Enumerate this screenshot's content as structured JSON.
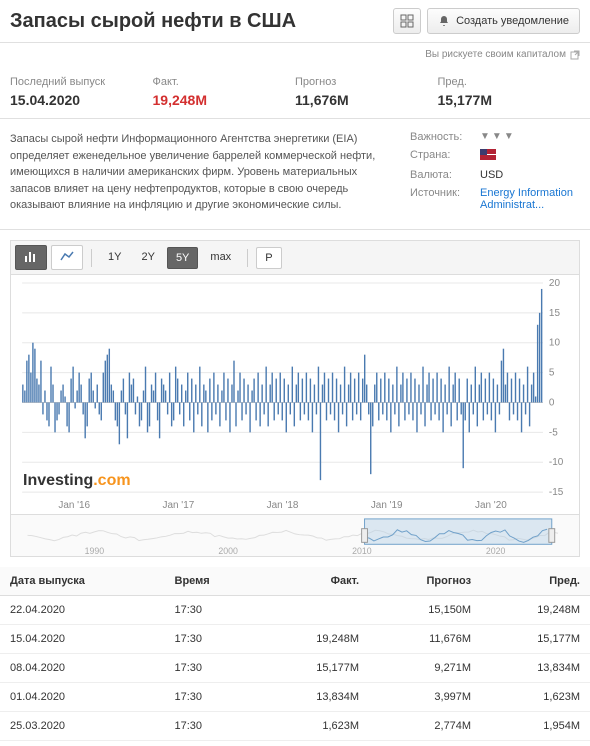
{
  "header": {
    "title": "Запасы сырой нефти в США",
    "create_alert": "Создать уведомление",
    "risk_text": "Вы рискуете своим капиталом"
  },
  "stats": {
    "release_label": "Последний выпуск",
    "release_value": "15.04.2020",
    "actual_label": "Факт.",
    "actual_value": "19,248M",
    "forecast_label": "Прогноз",
    "forecast_value": "11,676M",
    "prev_label": "Пред.",
    "prev_value": "15,177M"
  },
  "description": "Запасы сырой нефти Информационного Агентства энергетики (EIA) определяет еженедельное увеличение баррелей коммерческой нефти, имеющихся в наличии американских фирм. Уровень материальных запасов влияет на цену нефтепродуктов, которые в свою очередь оказывают влияние на инфляцию и другие экономические силы.",
  "meta": {
    "importance_label": "Важность:",
    "country_label": "Страна:",
    "currency_label": "Валюта:",
    "currency_value": "USD",
    "source_label": "Источник:",
    "source_value": "Energy Information Administrat..."
  },
  "toolbar": {
    "ranges": [
      "1Y",
      "2Y",
      "5Y",
      "max"
    ],
    "active_range": "5Y",
    "p_button": "P"
  },
  "chart": {
    "ylim": [
      -15,
      20
    ],
    "ytick_step": 5,
    "yticks": [
      -15,
      -10,
      -5,
      0,
      5,
      10,
      15,
      20
    ],
    "xlabels": [
      "Jan '16",
      "Jan '17",
      "Jan '18",
      "Jan '19",
      "Jan '20"
    ],
    "bar_color": "#4a7ab0",
    "grid_color": "#e8e8e8",
    "axis_color": "#ccc",
    "label_color": "#888",
    "label_fontsize": 10,
    "watermark": "Investing",
    "watermark_suffix": ".com",
    "values": [
      3,
      2,
      7,
      8,
      5,
      10,
      9,
      4,
      3,
      7,
      -2,
      2,
      -3,
      -4,
      6,
      3,
      -5,
      -3,
      -2,
      2,
      3,
      1,
      -4,
      -5,
      4,
      6,
      -1,
      2,
      5,
      3,
      -2,
      -6,
      -4,
      4,
      5,
      2,
      -1,
      3,
      -2,
      -3,
      5,
      7,
      8,
      9,
      3,
      2,
      -3,
      -4,
      -7,
      2,
      4,
      -2,
      -6,
      5,
      3,
      4,
      -2,
      1,
      -4,
      -3,
      2,
      6,
      -5,
      -4,
      3,
      2,
      5,
      -3,
      -6,
      4,
      3,
      2,
      -2,
      5,
      -4,
      -3,
      6,
      4,
      -2,
      3,
      -4,
      2,
      5,
      -3,
      4,
      -5,
      3,
      -2,
      6,
      -4,
      3,
      2,
      -5,
      4,
      -3,
      5,
      -2,
      3,
      -4,
      2,
      5,
      -3,
      4,
      -5,
      3,
      7,
      -4,
      2,
      5,
      -3,
      4,
      -2,
      3,
      -5,
      2,
      4,
      -3,
      5,
      -4,
      3,
      -2,
      6,
      -4,
      3,
      5,
      -3,
      4,
      -2,
      5,
      -3,
      4,
      -5,
      3,
      -2,
      6,
      -4,
      3,
      5,
      -3,
      4,
      -2,
      5,
      -3,
      4,
      -5,
      3,
      -2,
      6,
      -13,
      3,
      5,
      -3,
      4,
      -2,
      5,
      -3,
      4,
      -5,
      3,
      -2,
      6,
      -4,
      3,
      5,
      -3,
      4,
      -2,
      5,
      -3,
      4,
      8,
      3,
      -2,
      -12,
      -4,
      3,
      5,
      -3,
      4,
      -2,
      5,
      -3,
      4,
      -5,
      3,
      -2,
      6,
      -4,
      3,
      5,
      -3,
      4,
      -2,
      5,
      -3,
      4,
      -5,
      3,
      -2,
      6,
      -4,
      3,
      5,
      -3,
      4,
      -2,
      5,
      -3,
      4,
      -5,
      3,
      -2,
      6,
      -4,
      3,
      5,
      -3,
      4,
      -2,
      -11,
      -3,
      4,
      -5,
      3,
      -2,
      6,
      -4,
      3,
      5,
      -3,
      4,
      -2,
      5,
      -3,
      4,
      -5,
      3,
      -2,
      7,
      9,
      3,
      5,
      -3,
      4,
      -2,
      5,
      -3,
      4,
      -5,
      3,
      -2,
      6,
      -4,
      3,
      5,
      1,
      13,
      15,
      19
    ]
  },
  "nav": {
    "labels": [
      "1990",
      "2000",
      "2010",
      "2020"
    ],
    "sel_start": 0.63,
    "sel_end": 0.98,
    "fill_color": "#bcd4e8",
    "line_color": "#6fa0c9"
  },
  "table": {
    "headers": [
      "Дата выпуска",
      "Время",
      "Факт.",
      "Прогноз",
      "Пред."
    ],
    "rows": [
      {
        "date": "22.04.2020",
        "time": "17:30",
        "actual": "",
        "actual_cls": "",
        "forecast": "15,150M",
        "prev": "19,248M"
      },
      {
        "date": "15.04.2020",
        "time": "17:30",
        "actual": "19,248M",
        "actual_cls": "red",
        "forecast": "11,676M",
        "prev": "15,177M"
      },
      {
        "date": "08.04.2020",
        "time": "17:30",
        "actual": "15,177M",
        "actual_cls": "red",
        "forecast": "9,271M",
        "prev": "13,834M"
      },
      {
        "date": "01.04.2020",
        "time": "17:30",
        "actual": "13,834M",
        "actual_cls": "red",
        "forecast": "3,997M",
        "prev": "1,623M"
      },
      {
        "date": "25.03.2020",
        "time": "17:30",
        "actual": "1,623M",
        "actual_cls": "green",
        "forecast": "2,774M",
        "prev": "1,954M"
      }
    ]
  }
}
